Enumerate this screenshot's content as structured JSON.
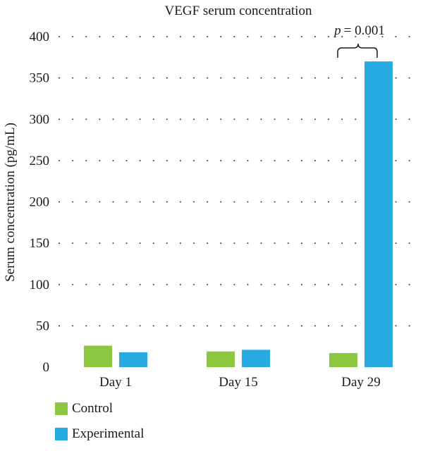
{
  "chart_data": {
    "type": "bar",
    "title": "VEGF serum concentration",
    "xlabel": "",
    "ylabel": "Serum concentration (pg/mL)",
    "ylim": [
      0,
      400
    ],
    "yticks": [
      0,
      50,
      100,
      150,
      200,
      250,
      300,
      350,
      400
    ],
    "grid": "dotted-horizontal",
    "categories": [
      "Day 1",
      "Day 15",
      "Day 29"
    ],
    "series": [
      {
        "name": "Control",
        "values": [
          26,
          19,
          17
        ],
        "color": "#8dc63f"
      },
      {
        "name": "Experimental",
        "values": [
          18,
          21,
          370
        ],
        "color": "#27aae1"
      }
    ],
    "legend_position": "bottom-left",
    "annotation": {
      "category": "Day 29",
      "p_label": "p",
      "value_text": "= 0.001"
    }
  }
}
